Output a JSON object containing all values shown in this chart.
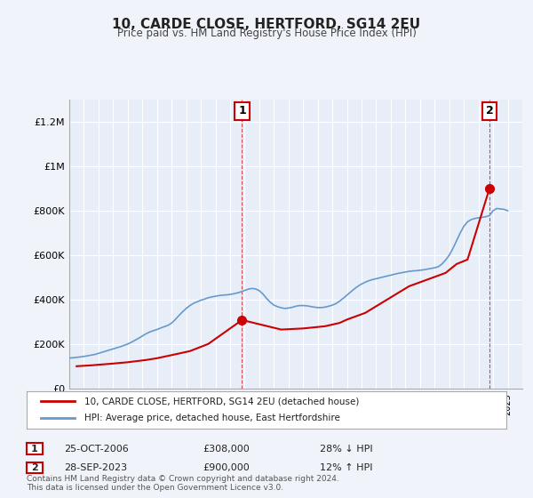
{
  "title": "10, CARDE CLOSE, HERTFORD, SG14 2EU",
  "subtitle": "Price paid vs. HM Land Registry's House Price Index (HPI)",
  "hpi_color": "#6699cc",
  "price_color": "#cc0000",
  "background_color": "#f0f4fa",
  "plot_bg_color": "#e8eef8",
  "grid_color": "#ffffff",
  "ylim": [
    0,
    1300000
  ],
  "yticks": [
    0,
    200000,
    400000,
    600000,
    800000,
    1000000,
    1200000
  ],
  "ytick_labels": [
    "£0",
    "£200K",
    "£400K",
    "£600K",
    "£800K",
    "£1M",
    "£1.2M"
  ],
  "legend_line1": "10, CARDE CLOSE, HERTFORD, SG14 2EU (detached house)",
  "legend_line2": "HPI: Average price, detached house, East Hertfordshire",
  "footnote": "Contains HM Land Registry data © Crown copyright and database right 2024.\nThis data is licensed under the Open Government Licence v3.0.",
  "annotation1_label": "1",
  "annotation1_date": "25-OCT-2006",
  "annotation1_price": "£308,000",
  "annotation1_hpi": "28% ↓ HPI",
  "annotation2_label": "2",
  "annotation2_date": "28-SEP-2023",
  "annotation2_price": "£900,000",
  "annotation2_hpi": "12% ↑ HPI",
  "sale1_x": 2006.82,
  "sale1_y": 308000,
  "sale2_x": 2023.75,
  "sale2_y": 900000,
  "hpi_x": [
    1995,
    1995.25,
    1995.5,
    1995.75,
    1996,
    1996.25,
    1996.5,
    1996.75,
    1997,
    1997.25,
    1997.5,
    1997.75,
    1998,
    1998.25,
    1998.5,
    1998.75,
    1999,
    1999.25,
    1999.5,
    1999.75,
    2000,
    2000.25,
    2000.5,
    2000.75,
    2001,
    2001.25,
    2001.5,
    2001.75,
    2002,
    2002.25,
    2002.5,
    2002.75,
    2003,
    2003.25,
    2003.5,
    2003.75,
    2004,
    2004.25,
    2004.5,
    2004.75,
    2005,
    2005.25,
    2005.5,
    2005.75,
    2006,
    2006.25,
    2006.5,
    2006.75,
    2007,
    2007.25,
    2007.5,
    2007.75,
    2008,
    2008.25,
    2008.5,
    2008.75,
    2009,
    2009.25,
    2009.5,
    2009.75,
    2010,
    2010.25,
    2010.5,
    2010.75,
    2011,
    2011.25,
    2011.5,
    2011.75,
    2012,
    2012.25,
    2012.5,
    2012.75,
    2013,
    2013.25,
    2013.5,
    2013.75,
    2014,
    2014.25,
    2014.5,
    2014.75,
    2015,
    2015.25,
    2015.5,
    2015.75,
    2016,
    2016.25,
    2016.5,
    2016.75,
    2017,
    2017.25,
    2017.5,
    2017.75,
    2018,
    2018.25,
    2018.5,
    2018.75,
    2019,
    2019.25,
    2019.5,
    2019.75,
    2020,
    2020.25,
    2020.5,
    2020.75,
    2021,
    2021.25,
    2021.5,
    2021.75,
    2022,
    2022.25,
    2022.5,
    2022.75,
    2023,
    2023.25,
    2023.5,
    2023.75,
    2024,
    2024.25,
    2024.5,
    2024.75,
    2025
  ],
  "hpi_y": [
    137000,
    138000,
    140000,
    142000,
    144000,
    147000,
    150000,
    153000,
    158000,
    163000,
    168000,
    173000,
    178000,
    183000,
    188000,
    194000,
    200000,
    208000,
    217000,
    226000,
    236000,
    246000,
    254000,
    260000,
    265000,
    272000,
    278000,
    284000,
    294000,
    310000,
    328000,
    345000,
    360000,
    373000,
    383000,
    390000,
    397000,
    402000,
    408000,
    412000,
    415000,
    418000,
    420000,
    421000,
    423000,
    426000,
    430000,
    435000,
    441000,
    447000,
    450000,
    448000,
    440000,
    425000,
    405000,
    388000,
    375000,
    368000,
    363000,
    360000,
    362000,
    365000,
    370000,
    373000,
    373000,
    372000,
    369000,
    366000,
    364000,
    364000,
    366000,
    370000,
    375000,
    382000,
    393000,
    406000,
    420000,
    434000,
    448000,
    460000,
    470000,
    478000,
    485000,
    490000,
    494000,
    498000,
    502000,
    506000,
    510000,
    514000,
    518000,
    521000,
    524000,
    527000,
    529000,
    530000,
    532000,
    534000,
    537000,
    540000,
    543000,
    548000,
    560000,
    578000,
    600000,
    630000,
    665000,
    700000,
    730000,
    750000,
    760000,
    765000,
    768000,
    770000,
    773000,
    778000,
    800000,
    810000,
    808000,
    806000,
    800000
  ],
  "price_x": [
    1995.5,
    1996.0,
    1996.5,
    1997.25,
    1998.0,
    1999.0,
    2000.25,
    2001.0,
    2002.0,
    2003.25,
    2004.5,
    2006.82,
    2009.5,
    2011.0,
    2012.5,
    2013.5,
    2014.0,
    2015.25,
    2016.5,
    2017.5,
    2018.25,
    2019.5,
    2020.75,
    2021.5,
    2022.25,
    2023.75
  ],
  "price_y": [
    100000,
    102000,
    104000,
    108000,
    112000,
    118000,
    128000,
    136000,
    150000,
    168000,
    200000,
    308000,
    265000,
    270000,
    280000,
    295000,
    310000,
    340000,
    390000,
    430000,
    460000,
    490000,
    520000,
    560000,
    580000,
    900000
  ],
  "xmin": 1995,
  "xmax": 2026
}
